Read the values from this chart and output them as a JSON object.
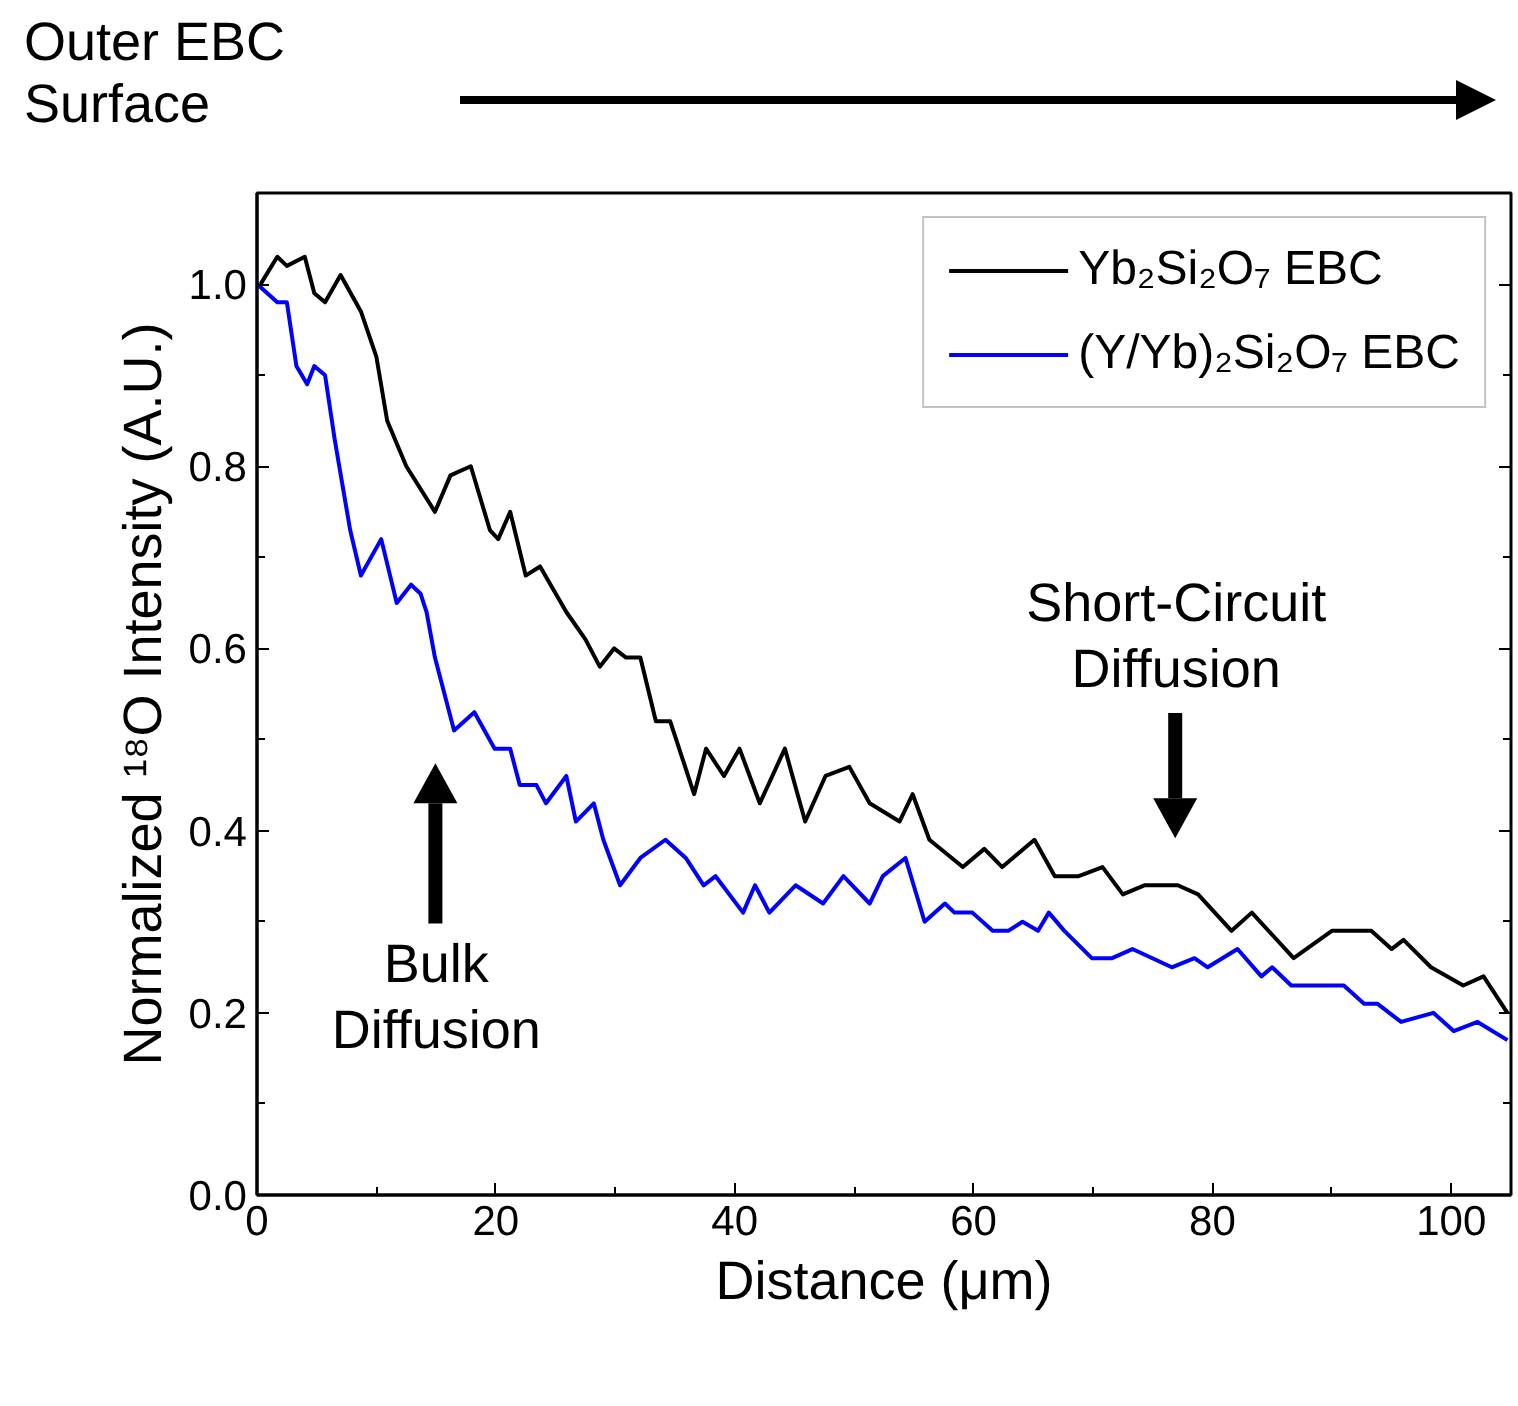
{
  "chart_data": {
    "type": "line",
    "xlabel": "Distance (μm)",
    "ylabel": "Normalized ¹⁸O Intensity (A.U.)",
    "xlim": [
      0,
      105
    ],
    "ylim": [
      0,
      1.1
    ],
    "xticks": [
      0,
      {
        "value": 10,
        "label": null
      },
      20,
      {
        "value": 30,
        "label": null
      },
      40,
      {
        "value": 50,
        "label": null
      },
      60,
      {
        "value": 70,
        "label": null
      },
      80,
      {
        "value": 90,
        "label": null
      },
      100
    ],
    "yticks": [
      {
        "value": 0,
        "label": "0.0"
      },
      {
        "value": 0.1,
        "label": null
      },
      0.2,
      {
        "value": 0.3,
        "label": null
      },
      0.4,
      {
        "value": 0.5,
        "label": null
      },
      0.6,
      {
        "value": 0.7,
        "label": null
      },
      0.8,
      {
        "value": 0.9,
        "label": null
      },
      {
        "value": 1,
        "label": "1.0"
      }
    ],
    "legend": "top right",
    "grid": false,
    "marker": "none",
    "line_style": "solid",
    "series": [
      {
        "name": "Yb₂Si₂O₇ EBC",
        "color": "#000000",
        "x": [
          0.3,
          1.7,
          2.5,
          4.0,
          4.8,
          5.7,
          7.0,
          8.7,
          10.0,
          10.9,
          12.5,
          14.9,
          16.2,
          17.9,
          19.5,
          20.2,
          21.2,
          22.5,
          23.7,
          25.9,
          27.5,
          28.7,
          29.9,
          30.9,
          32.1,
          33.4,
          34.6,
          36.6,
          37.6,
          39.1,
          40.4,
          42.1,
          44.2,
          45.9,
          47.6,
          49.6,
          51.3,
          53.8,
          54.9,
          56.3,
          59.1,
          60.9,
          62.4,
          65.1,
          66.8,
          68.8,
          70.8,
          72.5,
          74.3,
          77.1,
          78.8,
          81.6,
          83.3,
          86.8,
          90.0,
          93.3,
          95.0,
          96.0,
          98.3,
          101.0,
          102.7,
          104.7
        ],
        "values": [
          1.0,
          1.03,
          1.02,
          1.03,
          0.99,
          0.98,
          1.01,
          0.97,
          0.92,
          0.85,
          0.8,
          0.75,
          0.79,
          0.8,
          0.73,
          0.72,
          0.75,
          0.68,
          0.69,
          0.64,
          0.61,
          0.58,
          0.6,
          0.59,
          0.59,
          0.52,
          0.52,
          0.44,
          0.49,
          0.46,
          0.49,
          0.43,
          0.49,
          0.41,
          0.46,
          0.47,
          0.43,
          0.41,
          0.44,
          0.39,
          0.36,
          0.38,
          0.36,
          0.39,
          0.35,
          0.35,
          0.36,
          0.33,
          0.34,
          0.34,
          0.33,
          0.29,
          0.31,
          0.26,
          0.29,
          0.29,
          0.27,
          0.28,
          0.25,
          0.23,
          0.24,
          0.2
        ]
      },
      {
        "name": "(Y/Yb)₂Si₂O₇ EBC",
        "color": "#0000ff",
        "x": [
          0.0,
          1.7,
          2.5,
          3.3,
          4.2,
          4.8,
          5.7,
          6.5,
          7.8,
          8.7,
          10.4,
          11.7,
          12.9,
          13.7,
          14.2,
          14.9,
          16.5,
          18.2,
          19.9,
          21.2,
          22.0,
          23.4,
          24.2,
          25.9,
          26.7,
          28.2,
          29.0,
          30.4,
          32.1,
          34.2,
          35.9,
          37.4,
          38.4,
          40.7,
          41.7,
          42.9,
          45.1,
          47.4,
          49.1,
          51.3,
          52.4,
          54.3,
          55.9,
          57.6,
          58.4,
          59.9,
          61.6,
          62.9,
          64.1,
          65.4,
          66.3,
          67.6,
          69.9,
          71.6,
          73.3,
          76.6,
          78.5,
          79.6,
          82.1,
          84.1,
          85.0,
          86.6,
          88.8,
          89.6,
          91.0,
          92.7,
          93.8,
          95.8,
          98.5,
          100.2,
          102.2,
          104.7
        ],
        "values": [
          1.0,
          0.98,
          0.98,
          0.91,
          0.89,
          0.91,
          0.9,
          0.83,
          0.73,
          0.68,
          0.72,
          0.65,
          0.67,
          0.66,
          0.64,
          0.59,
          0.51,
          0.53,
          0.49,
          0.49,
          0.45,
          0.45,
          0.43,
          0.46,
          0.41,
          0.43,
          0.39,
          0.34,
          0.37,
          0.39,
          0.37,
          0.34,
          0.35,
          0.31,
          0.34,
          0.31,
          0.34,
          0.32,
          0.35,
          0.32,
          0.35,
          0.37,
          0.3,
          0.32,
          0.31,
          0.31,
          0.29,
          0.29,
          0.3,
          0.29,
          0.31,
          0.29,
          0.26,
          0.26,
          0.27,
          0.25,
          0.26,
          0.25,
          0.27,
          0.24,
          0.25,
          0.23,
          0.23,
          0.23,
          0.23,
          0.21,
          0.21,
          0.19,
          0.2,
          0.18,
          0.19,
          0.17
        ]
      }
    ],
    "annotations": [
      "Outer EBC Surface",
      "Bulk Diffusion",
      "Short-Circuit Diffusion"
    ]
  }
}
